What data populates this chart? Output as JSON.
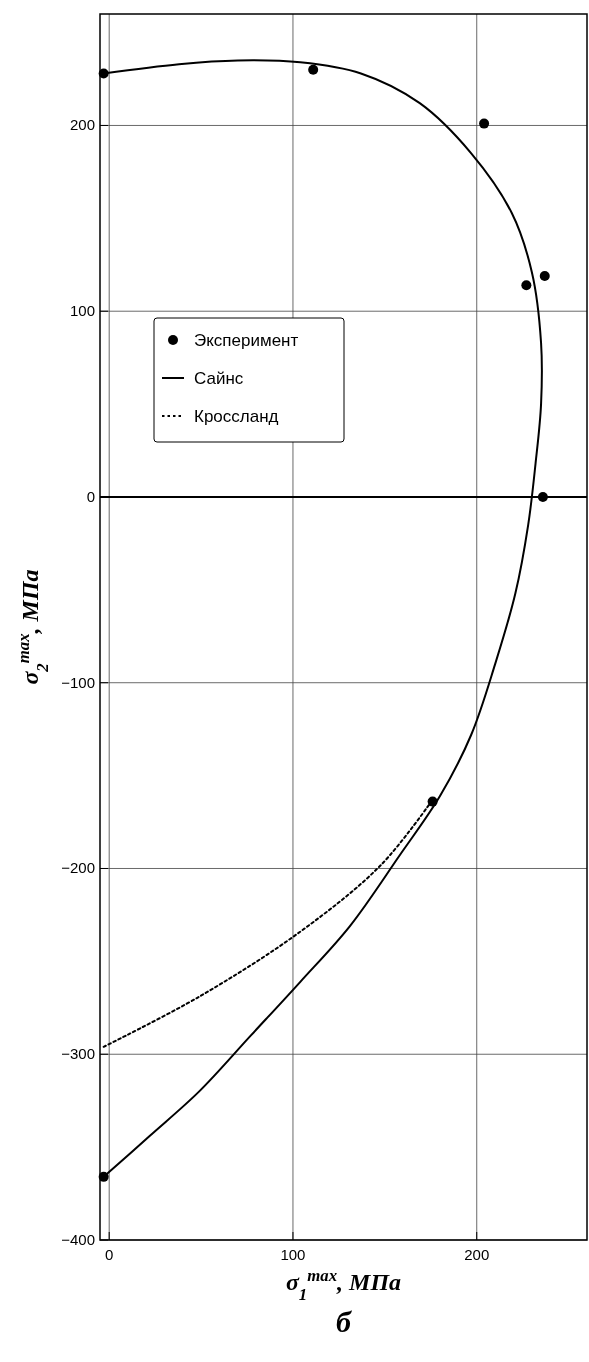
{
  "chart_data": {
    "type": "scatter",
    "xlabel": "σ$_{1}$$^{max}$, МПа",
    "ylabel": "σ$_{2}$$^{max}$, МПа",
    "annotations": [
      "б"
    ],
    "xlim": [
      -5,
      260
    ],
    "ylim": [
      -400,
      260
    ],
    "xticks": [
      0,
      100,
      200
    ],
    "yticks": [
      -400,
      -300,
      -200,
      -100,
      0,
      100,
      200
    ],
    "grid": true,
    "legend": "top left",
    "ref_lines": [
      {
        "axis": "y",
        "value": 0,
        "label": null,
        "color": "#000000"
      }
    ],
    "series": [
      {
        "name": "Эксперимент",
        "color": "#000000",
        "marker": "circle",
        "x": [
          -3,
          111,
          204,
          227,
          237,
          236,
          176,
          -3
        ],
        "values": [
          228,
          230,
          201,
          114,
          119,
          0,
          -164,
          -366
        ]
      },
      {
        "name": "Сайнс",
        "type": "line",
        "color": "#000000",
        "line_style": "solid",
        "x": [
          -3,
          38,
          70,
          104,
          137,
          169,
          197,
          219,
          230,
          235,
          235,
          232,
          228,
          221,
          210,
          197,
          180,
          158,
          131,
          104,
          77,
          49,
          22,
          -3
        ],
        "values": [
          228,
          233,
          235,
          234,
          228,
          212,
          185,
          153,
          121,
          83,
          50,
          18,
          -15,
          -52,
          -90,
          -128,
          -161,
          -193,
          -231,
          -261,
          -290,
          -320,
          -344,
          -366
        ]
      },
      {
        "name": "Кроссланд",
        "type": "line",
        "color": "#000000",
        "line_style": "dotted",
        "x": [
          -3,
          49,
          104,
          148,
          176
        ],
        "values": [
          -296,
          -269,
          -234,
          -198,
          -163
        ]
      }
    ]
  }
}
